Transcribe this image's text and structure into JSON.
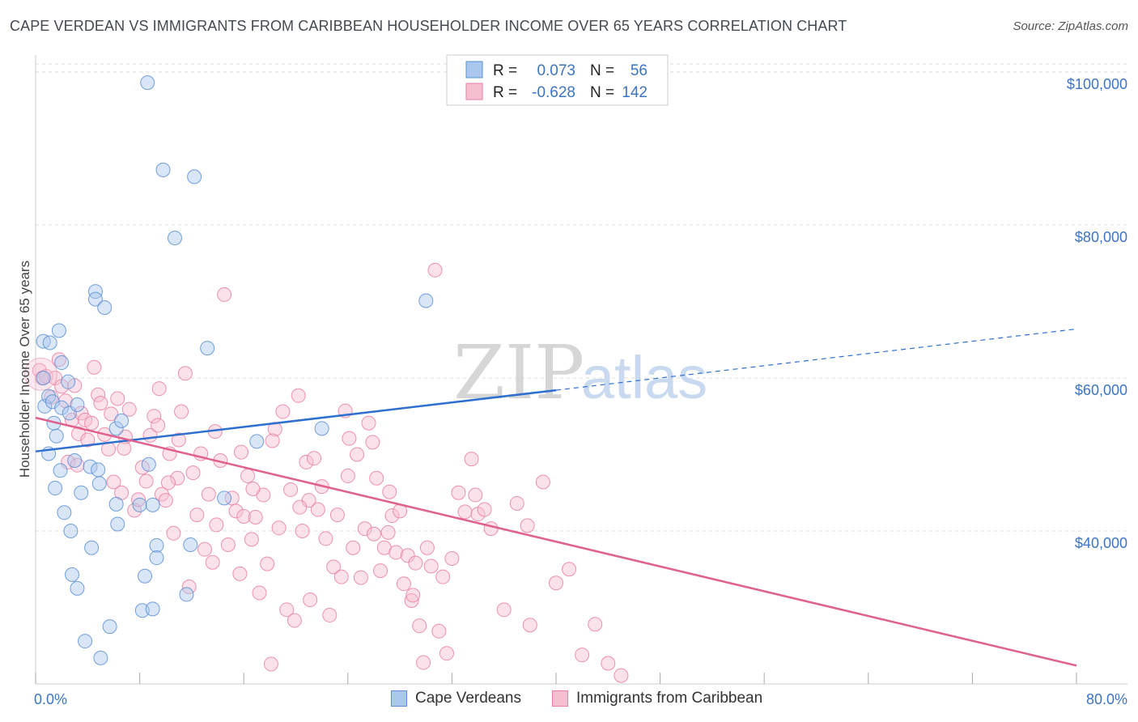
{
  "title": "CAPE VERDEAN VS IMMIGRANTS FROM CARIBBEAN HOUSEHOLDER INCOME OVER 65 YEARS CORRELATION CHART",
  "source": "Source: ZipAtlas.com",
  "watermark": {
    "zip": "ZIP",
    "atlas": "atlas"
  },
  "colors": {
    "blue": "#5b8fd6",
    "blue_fill": "#aac8ee",
    "blue_line": "#2f6fd0",
    "pink": "#e87fa2",
    "pink_fill": "#f6bfd0",
    "pink_line": "#e0608e",
    "axis_text": "#3d74c4",
    "grid": "#dcdcdc"
  },
  "legend": {
    "r_label": "R =",
    "n_label": "N =",
    "series": [
      {
        "r": "0.073",
        "n": "56"
      },
      {
        "r": "-0.628",
        "n": "142"
      }
    ]
  },
  "bottom_legend": [
    "Cape Verdeans",
    "Immigrants from Caribbean"
  ],
  "chart_data": {
    "type": "scatter",
    "title": "CAPE VERDEAN VS IMMIGRANTS FROM CARIBBEAN HOUSEHOLDER INCOME OVER 65 YEARS CORRELATION CHART",
    "xlabel": "",
    "ylabel": "Householder Income Over 65 years",
    "xlim": [
      0,
      80
    ],
    "ylim": [
      20000,
      102000
    ],
    "x_tick_labels": [
      "0.0%",
      "80.0%"
    ],
    "y_ticks": [
      40000,
      60000,
      80000,
      100000
    ],
    "y_tick_labels": [
      "$40,000",
      "$60,000",
      "$80,000",
      "$100,000"
    ],
    "grid": true,
    "legend_placement": "top-center",
    "series": [
      {
        "name": "Cape Verdeans",
        "color": "#5b8fd6",
        "trend": {
          "x_start": 0,
          "y_start": 50400,
          "x_solid_end": 40,
          "y_solid_end": 58400,
          "x_end": 80,
          "y_end": 66400
        },
        "points": [
          [
            0.6,
            64800
          ],
          [
            0.6,
            60000
          ],
          [
            0.7,
            56300
          ],
          [
            1.0,
            57600
          ],
          [
            1.0,
            50100
          ],
          [
            1.1,
            64600
          ],
          [
            1.3,
            56900
          ],
          [
            1.4,
            54100
          ],
          [
            1.5,
            45600
          ],
          [
            1.6,
            52400
          ],
          [
            1.8,
            66200
          ],
          [
            1.9,
            47900
          ],
          [
            2.0,
            62000
          ],
          [
            2.0,
            56100
          ],
          [
            2.2,
            42400
          ],
          [
            2.5,
            59500
          ],
          [
            2.6,
            55400
          ],
          [
            2.7,
            40000
          ],
          [
            2.8,
            34300
          ],
          [
            3.0,
            49200
          ],
          [
            3.2,
            32500
          ],
          [
            3.2,
            56500
          ],
          [
            3.5,
            45000
          ],
          [
            3.8,
            25600
          ],
          [
            4.2,
            48400
          ],
          [
            4.3,
            37800
          ],
          [
            4.6,
            71300
          ],
          [
            4.6,
            70300
          ],
          [
            4.8,
            48000
          ],
          [
            4.9,
            46200
          ],
          [
            5.0,
            23400
          ],
          [
            5.3,
            69200
          ],
          [
            5.7,
            27500
          ],
          [
            6.2,
            53400
          ],
          [
            6.2,
            43500
          ],
          [
            6.3,
            40900
          ],
          [
            6.6,
            54400
          ],
          [
            8.0,
            43400
          ],
          [
            8.2,
            29600
          ],
          [
            8.4,
            34100
          ],
          [
            8.6,
            98600
          ],
          [
            8.7,
            48700
          ],
          [
            9.0,
            29800
          ],
          [
            9.0,
            43400
          ],
          [
            9.3,
            38100
          ],
          [
            9.3,
            36500
          ],
          [
            9.8,
            87200
          ],
          [
            10.7,
            78300
          ],
          [
            11.6,
            31700
          ],
          [
            11.9,
            38200
          ],
          [
            12.2,
            86300
          ],
          [
            13.2,
            63900
          ],
          [
            14.5,
            44300
          ],
          [
            17.0,
            51700
          ],
          [
            22.0,
            53400
          ],
          [
            30.0,
            70100
          ]
        ]
      },
      {
        "name": "Immigrants from Caribbean",
        "color": "#e87fa2",
        "trend": {
          "x_start": 0,
          "y_start": 54800,
          "x_end": 80,
          "y_end": 22400
        },
        "points": [
          [
            0.3,
            61000
          ],
          [
            0.5,
            60000
          ],
          [
            0.8,
            60200
          ],
          [
            1.2,
            57500
          ],
          [
            1.5,
            60000
          ],
          [
            1.8,
            62400
          ],
          [
            2.0,
            58900
          ],
          [
            2.3,
            57000
          ],
          [
            2.5,
            49000
          ],
          [
            2.8,
            54500
          ],
          [
            3.0,
            59000
          ],
          [
            3.3,
            52700
          ],
          [
            3.5,
            55400
          ],
          [
            3.8,
            54500
          ],
          [
            4.0,
            51900
          ],
          [
            4.3,
            54100
          ],
          [
            4.5,
            61400
          ],
          [
            4.8,
            57800
          ],
          [
            5.0,
            56700
          ],
          [
            5.3,
            52600
          ],
          [
            5.6,
            50700
          ],
          [
            5.8,
            55300
          ],
          [
            6.0,
            46400
          ],
          [
            6.3,
            57300
          ],
          [
            6.6,
            45000
          ],
          [
            6.9,
            52300
          ],
          [
            7.2,
            55900
          ],
          [
            7.6,
            42700
          ],
          [
            7.9,
            44100
          ],
          [
            8.2,
            48300
          ],
          [
            8.5,
            46500
          ],
          [
            8.8,
            52500
          ],
          [
            9.1,
            55000
          ],
          [
            9.4,
            53800
          ],
          [
            9.7,
            44800
          ],
          [
            10.0,
            44000
          ],
          [
            10.3,
            50100
          ],
          [
            10.6,
            39700
          ],
          [
            10.9,
            46900
          ],
          [
            11.2,
            55600
          ],
          [
            11.5,
            60600
          ],
          [
            11.8,
            32700
          ],
          [
            12.1,
            47600
          ],
          [
            12.4,
            42100
          ],
          [
            12.7,
            50100
          ],
          [
            13.0,
            37600
          ],
          [
            13.3,
            44800
          ],
          [
            13.6,
            35900
          ],
          [
            13.9,
            40800
          ],
          [
            14.2,
            49200
          ],
          [
            14.5,
            70900
          ],
          [
            14.8,
            38200
          ],
          [
            15.1,
            44300
          ],
          [
            15.4,
            42600
          ],
          [
            15.7,
            34400
          ],
          [
            16.0,
            41900
          ],
          [
            16.3,
            47200
          ],
          [
            16.6,
            38900
          ],
          [
            16.9,
            41800
          ],
          [
            17.2,
            31900
          ],
          [
            17.5,
            44700
          ],
          [
            17.8,
            35700
          ],
          [
            18.1,
            22600
          ],
          [
            18.4,
            53300
          ],
          [
            18.7,
            40400
          ],
          [
            19.0,
            55600
          ],
          [
            19.3,
            29700
          ],
          [
            19.6,
            45400
          ],
          [
            19.9,
            28300
          ],
          [
            20.2,
            57700
          ],
          [
            20.5,
            40000
          ],
          [
            20.8,
            49000
          ],
          [
            21.1,
            31000
          ],
          [
            21.4,
            49500
          ],
          [
            21.7,
            42800
          ],
          [
            22.0,
            45800
          ],
          [
            22.3,
            39000
          ],
          [
            22.6,
            29000
          ],
          [
            22.9,
            35300
          ],
          [
            23.2,
            42100
          ],
          [
            23.5,
            34000
          ],
          [
            23.8,
            55700
          ],
          [
            24.1,
            52100
          ],
          [
            24.4,
            37800
          ],
          [
            24.7,
            50000
          ],
          [
            25.0,
            33900
          ],
          [
            25.3,
            40300
          ],
          [
            25.6,
            54100
          ],
          [
            25.9,
            51600
          ],
          [
            26.2,
            46900
          ],
          [
            26.5,
            34800
          ],
          [
            26.8,
            37800
          ],
          [
            27.1,
            39800
          ],
          [
            27.4,
            42000
          ],
          [
            27.7,
            37200
          ],
          [
            28.0,
            42600
          ],
          [
            28.3,
            33100
          ],
          [
            28.6,
            36800
          ],
          [
            28.9,
            30900
          ],
          [
            29.2,
            35800
          ],
          [
            29.5,
            27600
          ],
          [
            29.8,
            22800
          ],
          [
            30.1,
            37800
          ],
          [
            30.4,
            35400
          ],
          [
            30.7,
            74100
          ],
          [
            31.0,
            26900
          ],
          [
            31.3,
            34000
          ],
          [
            31.6,
            24000
          ],
          [
            32.0,
            36400
          ],
          [
            32.5,
            45000
          ],
          [
            33.0,
            42500
          ],
          [
            33.5,
            49400
          ],
          [
            34.0,
            42200
          ],
          [
            34.5,
            42800
          ],
          [
            35.0,
            40300
          ],
          [
            36.0,
            29700
          ],
          [
            37.0,
            43600
          ],
          [
            38.0,
            27700
          ],
          [
            39.0,
            46400
          ],
          [
            40.0,
            33200
          ],
          [
            41.0,
            35000
          ],
          [
            42.0,
            23800
          ],
          [
            43.0,
            27800
          ],
          [
            44.0,
            22700
          ],
          [
            45.0,
            21100
          ],
          [
            3.2,
            48600
          ],
          [
            6.8,
            50800
          ],
          [
            10.2,
            46300
          ],
          [
            13.8,
            53000
          ],
          [
            18.2,
            51800
          ],
          [
            21.0,
            44000
          ],
          [
            24.0,
            47200
          ],
          [
            27.2,
            45100
          ],
          [
            9.5,
            58600
          ],
          [
            15.8,
            50300
          ],
          [
            20.3,
            43100
          ],
          [
            26.0,
            39600
          ],
          [
            29.0,
            31600
          ],
          [
            33.8,
            44700
          ],
          [
            37.8,
            40700
          ],
          [
            11.0,
            51900
          ],
          [
            16.7,
            45500
          ]
        ]
      }
    ]
  }
}
